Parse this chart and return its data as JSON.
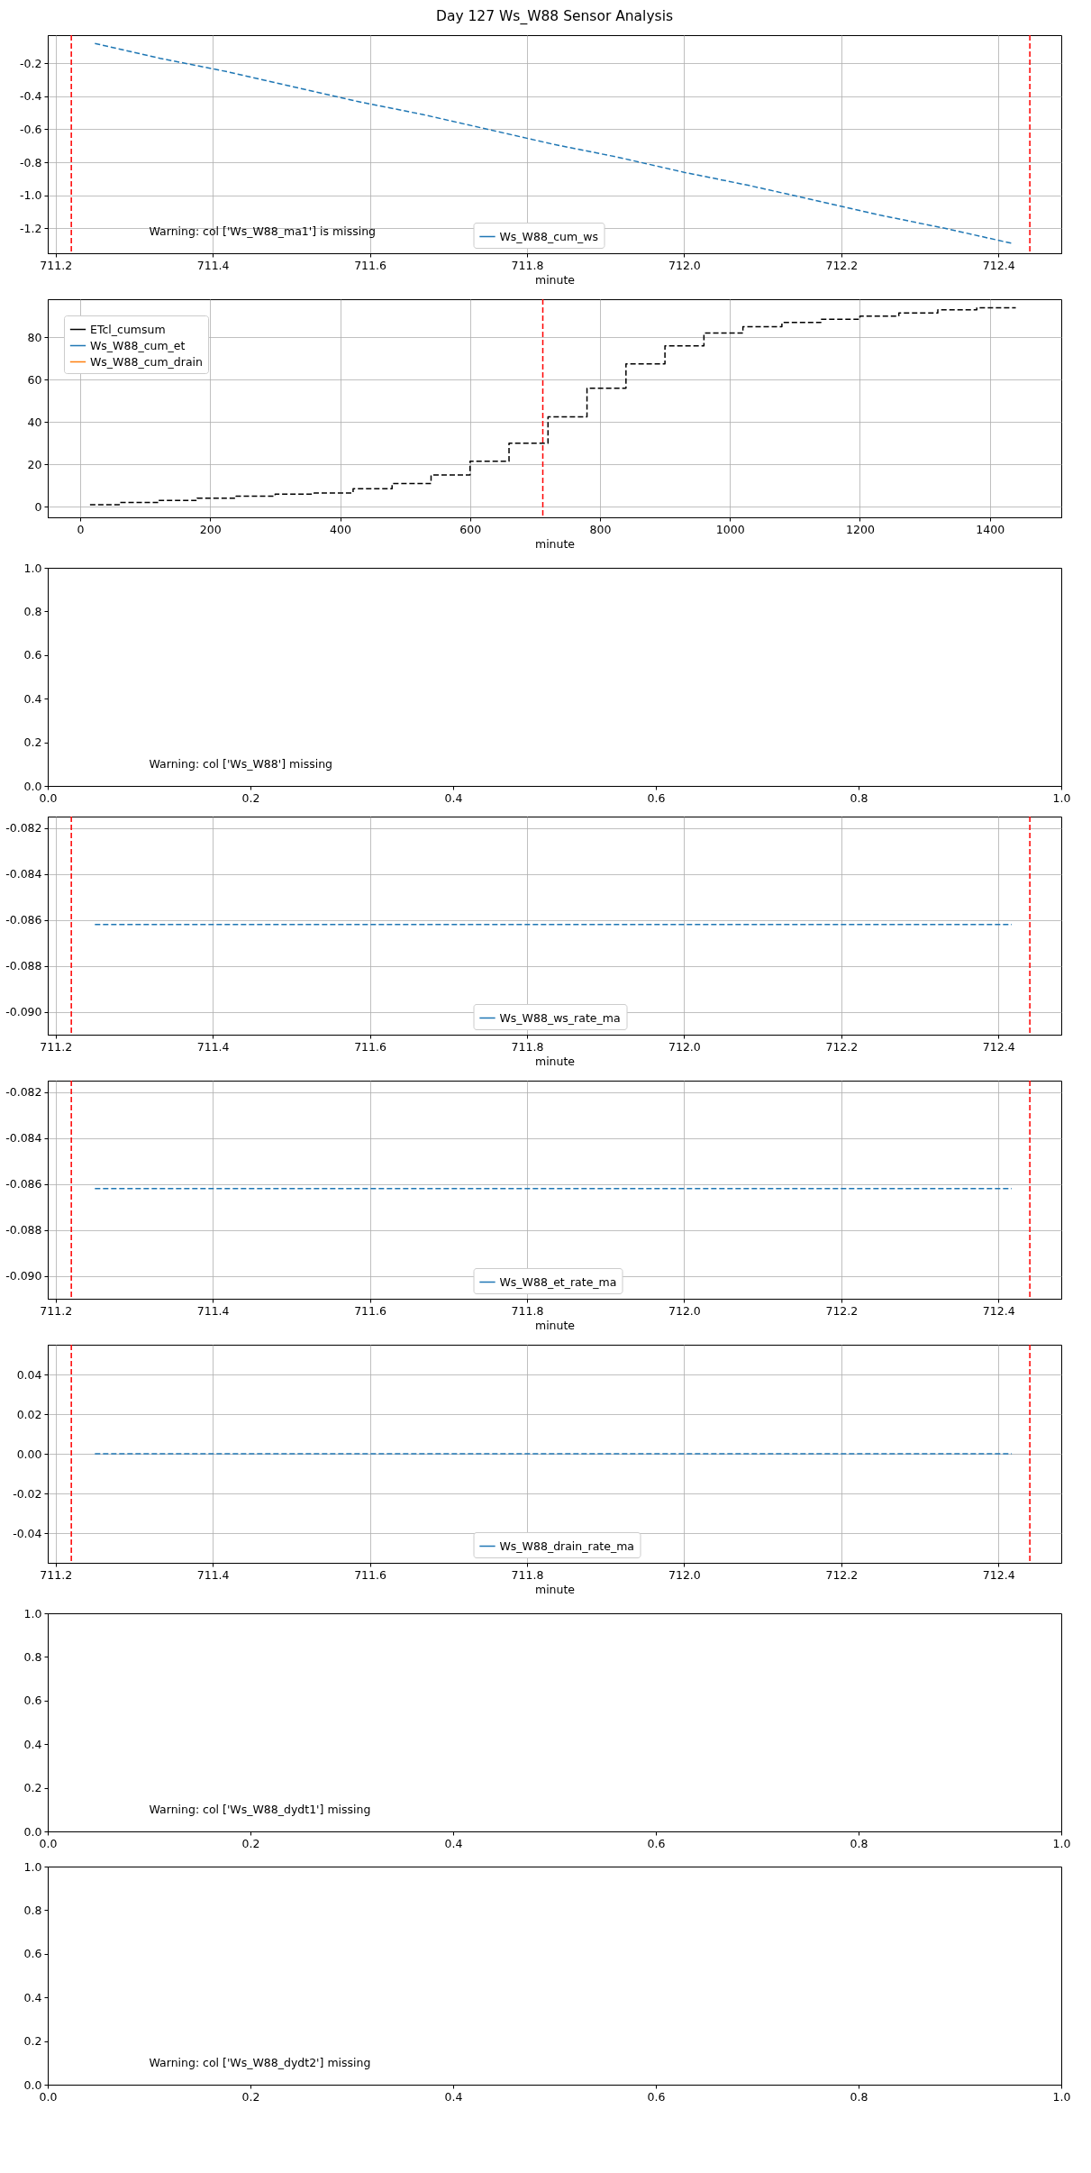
{
  "chart_data": [
    {
      "type": "line",
      "title": "Day 127 Ws_W88 Sensor Analysis",
      "xlabel": "minute",
      "x": [
        711.25,
        711.333,
        711.417,
        711.5,
        711.583,
        711.667,
        711.75,
        711.833,
        711.917,
        712.0,
        712.083,
        712.167,
        712.25,
        712.333,
        712.417
      ],
      "series": [
        {
          "name": "Ws_W88_cum_ws",
          "color": "#1f77b4",
          "values": [
            -0.08,
            -0.17,
            -0.25,
            -0.34,
            -0.43,
            -0.51,
            -0.6,
            -0.69,
            -0.77,
            -0.86,
            -0.94,
            -1.03,
            -1.12,
            -1.2,
            -1.29
          ]
        }
      ],
      "xlim": [
        711.19,
        712.48
      ],
      "ylim": [
        -1.35,
        -0.03
      ],
      "xticks": [
        711.2,
        711.4,
        711.6,
        711.8,
        {
          "value": 712,
          "label": "712.0"
        },
        712.2,
        712.4
      ],
      "yticks": [
        -1.2,
        {
          "value": -1,
          "label": "-1.0"
        },
        -0.8,
        -0.6,
        -0.4,
        -0.2
      ],
      "ref_lines": [
        {
          "axis": "x",
          "value": 711.22,
          "color": "#ff0000",
          "line_style": "dashed"
        },
        {
          "axis": "x",
          "value": 712.44,
          "color": "#ff0000",
          "line_style": "dashed"
        }
      ],
      "annotations": [
        "Warning: col ['Ws_W88_ma1'] is missing"
      ],
      "grid": true,
      "legend": "bottom",
      "line_style": "dashed"
    },
    {
      "type": "step",
      "xlabel": "minute",
      "x": [
        15,
        60,
        120,
        180,
        240,
        300,
        360,
        420,
        480,
        540,
        600,
        660,
        720,
        780,
        840,
        900,
        960,
        1020,
        1080,
        1140,
        1200,
        1260,
        1320,
        1380,
        1440
      ],
      "series": [
        {
          "name": "ETcl_cumsum",
          "color": "#000000",
          "values": [
            1,
            2,
            3,
            4,
            5,
            6,
            6.5,
            8.5,
            11,
            15,
            21.5,
            30,
            42.5,
            56,
            67.5,
            76,
            82,
            85,
            87,
            88.5,
            90,
            91.5,
            93,
            94,
            94
          ]
        },
        {
          "name": "Ws_W88_cum_et",
          "color": "#1f77b4",
          "values": [
            null,
            null,
            null,
            null,
            null,
            null,
            null,
            null,
            null,
            null,
            null,
            null,
            null,
            null,
            null,
            null,
            null,
            null,
            null,
            null,
            null,
            null,
            null,
            null,
            null
          ]
        },
        {
          "name": "Ws_W88_cum_drain",
          "color": "#ff7f0e",
          "values": [
            null,
            null,
            null,
            null,
            null,
            null,
            null,
            null,
            null,
            null,
            null,
            null,
            null,
            null,
            null,
            null,
            null,
            null,
            null,
            null,
            null,
            null,
            null,
            null,
            null
          ]
        }
      ],
      "xlim": [
        -50,
        1510
      ],
      "ylim": [
        -5,
        98
      ],
      "xticks": [
        0,
        200,
        400,
        600,
        800,
        1000,
        1200,
        1400
      ],
      "yticks": [
        0,
        20,
        40,
        60,
        80
      ],
      "ref_lines": [
        {
          "axis": "x",
          "value": 712,
          "color": "#ff0000",
          "line_style": "dashed"
        }
      ],
      "grid": true,
      "legend": "top left",
      "line_style": "dashed"
    },
    {
      "type": "line",
      "xlim": [
        0,
        1
      ],
      "ylim": [
        0,
        1
      ],
      "xticks": [
        {
          "value": 0,
          "label": "0.0"
        },
        0.2,
        0.4,
        0.6,
        0.8,
        {
          "value": 1,
          "label": "1.0"
        }
      ],
      "yticks": [
        {
          "value": 0,
          "label": "0.0"
        },
        0.2,
        0.4,
        0.6,
        0.8,
        {
          "value": 1,
          "label": "1.0"
        }
      ],
      "annotations": [
        "Warning: col ['Ws_W88'] missing"
      ]
    },
    {
      "type": "line",
      "xlabel": "minute",
      "x": [
        711.25,
        711.417,
        711.583,
        711.75,
        711.917,
        712.083,
        712.25,
        712.417
      ],
      "series": [
        {
          "name": "Ws_W88_ws_rate_ma",
          "color": "#1f77b4",
          "values": [
            -0.0862,
            -0.0862,
            -0.0862,
            -0.0862,
            -0.0862,
            -0.0862,
            -0.0862,
            -0.0862
          ]
        }
      ],
      "xlim": [
        711.19,
        712.48
      ],
      "ylim": [
        -0.091,
        -0.0815
      ],
      "xticks": [
        711.2,
        711.4,
        711.6,
        711.8,
        {
          "value": 712,
          "label": "712.0"
        },
        712.2,
        712.4
      ],
      "yticks": [
        {
          "value": -0.09,
          "label": "-0.090"
        },
        -0.088,
        -0.086,
        -0.084,
        -0.082
      ],
      "ref_lines": [
        {
          "axis": "x",
          "value": 711.22,
          "color": "#ff0000",
          "line_style": "dashed"
        },
        {
          "axis": "x",
          "value": 712.44,
          "color": "#ff0000",
          "line_style": "dashed"
        }
      ],
      "grid": true,
      "legend": "bottom",
      "line_style": "dashed"
    },
    {
      "type": "line",
      "xlabel": "minute",
      "x": [
        711.25,
        711.417,
        711.583,
        711.75,
        711.917,
        712.083,
        712.25,
        712.417
      ],
      "series": [
        {
          "name": "Ws_W88_et_rate_ma",
          "color": "#1f77b4",
          "values": [
            -0.0862,
            -0.0862,
            -0.0862,
            -0.0862,
            -0.0862,
            -0.0862,
            -0.0862,
            -0.0862
          ]
        }
      ],
      "xlim": [
        711.19,
        712.48
      ],
      "ylim": [
        -0.091,
        -0.0815
      ],
      "xticks": [
        711.2,
        711.4,
        711.6,
        711.8,
        {
          "value": 712,
          "label": "712.0"
        },
        712.2,
        712.4
      ],
      "yticks": [
        {
          "value": -0.09,
          "label": "-0.090"
        },
        -0.088,
        -0.086,
        -0.084,
        -0.082
      ],
      "ref_lines": [
        {
          "axis": "x",
          "value": 711.22,
          "color": "#ff0000",
          "line_style": "dashed"
        },
        {
          "axis": "x",
          "value": 712.44,
          "color": "#ff0000",
          "line_style": "dashed"
        }
      ],
      "grid": true,
      "legend": "bottom",
      "line_style": "dashed"
    },
    {
      "type": "line",
      "xlabel": "minute",
      "x": [
        711.25,
        711.417,
        711.583,
        711.75,
        711.917,
        712.083,
        712.25,
        712.417
      ],
      "series": [
        {
          "name": "Ws_W88_drain_rate_ma",
          "color": "#1f77b4",
          "values": [
            0,
            0,
            0,
            0,
            0,
            0,
            0,
            0
          ]
        }
      ],
      "xlim": [
        711.19,
        712.48
      ],
      "ylim": [
        -0.055,
        0.055
      ],
      "xticks": [
        711.2,
        711.4,
        711.6,
        711.8,
        {
          "value": 712,
          "label": "712.0"
        },
        712.2,
        712.4
      ],
      "yticks": [
        -0.04,
        -0.02,
        {
          "value": 0,
          "label": "0.00"
        },
        0.02,
        0.04
      ],
      "ref_lines": [
        {
          "axis": "x",
          "value": 711.22,
          "color": "#ff0000",
          "line_style": "dashed"
        },
        {
          "axis": "x",
          "value": 712.44,
          "color": "#ff0000",
          "line_style": "dashed"
        }
      ],
      "grid": true,
      "legend": "bottom",
      "line_style": "dashed"
    },
    {
      "type": "line",
      "xlim": [
        0,
        1
      ],
      "ylim": [
        0,
        1
      ],
      "xticks": [
        {
          "value": 0,
          "label": "0.0"
        },
        0.2,
        0.4,
        0.6,
        0.8,
        {
          "value": 1,
          "label": "1.0"
        }
      ],
      "yticks": [
        {
          "value": 0,
          "label": "0.0"
        },
        0.2,
        0.4,
        0.6,
        0.8,
        {
          "value": 1,
          "label": "1.0"
        }
      ],
      "annotations": [
        "Warning: col ['Ws_W88_dydt1'] missing"
      ]
    },
    {
      "type": "line",
      "xlim": [
        0,
        1
      ],
      "ylim": [
        0,
        1
      ],
      "xticks": [
        {
          "value": 0,
          "label": "0.0"
        },
        0.2,
        0.4,
        0.6,
        0.8,
        {
          "value": 1,
          "label": "1.0"
        }
      ],
      "yticks": [
        {
          "value": 0,
          "label": "0.0"
        },
        0.2,
        0.4,
        0.6,
        0.8,
        {
          "value": 1,
          "label": "1.0"
        }
      ],
      "annotations": [
        "Warning: col ['Ws_W88_dydt2'] missing"
      ]
    }
  ]
}
